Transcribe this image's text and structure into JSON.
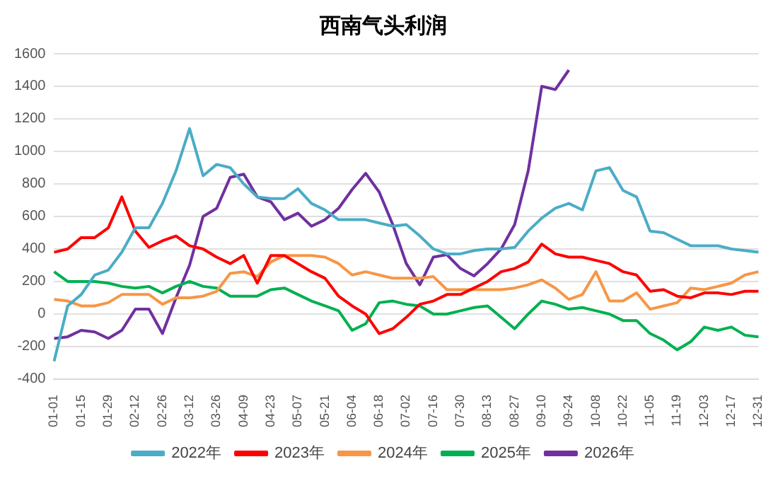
{
  "chart_data": {
    "type": "line",
    "title": "西南气头利润",
    "categories": [
      "01-01",
      null,
      "01-15",
      null,
      "01-29",
      null,
      "02-12",
      null,
      "02-26",
      null,
      "03-12",
      null,
      "03-26",
      null,
      "04-09",
      null,
      "04-23",
      null,
      "05-07",
      null,
      "05-21",
      null,
      "06-04",
      null,
      "06-18",
      null,
      "07-02",
      null,
      "07-16",
      null,
      "07-30",
      null,
      "08-13",
      null,
      "08-27",
      null,
      "09-10",
      null,
      "09-24",
      null,
      "10-08",
      null,
      "10-22",
      null,
      "11-05",
      null,
      "11-19",
      null,
      "12-03",
      null,
      "12-17",
      null,
      "12-31"
    ],
    "series": [
      {
        "name": "2022年",
        "color": "#4bacc6",
        "values": [
          -290,
          50,
          120,
          240,
          270,
          380,
          530,
          530,
          680,
          880,
          1140,
          850,
          920,
          900,
          800,
          720,
          710,
          710,
          770,
          680,
          640,
          580,
          580,
          580,
          560,
          540,
          550,
          480,
          400,
          370,
          370,
          390,
          400,
          400,
          410,
          510,
          590,
          650,
          680,
          640,
          880,
          900,
          760,
          720,
          510,
          500,
          460,
          420,
          420,
          420,
          400,
          390,
          380
        ]
      },
      {
        "name": "2023年",
        "color": "#ff0000",
        "values": [
          380,
          400,
          470,
          470,
          530,
          720,
          510,
          410,
          450,
          480,
          420,
          400,
          350,
          310,
          360,
          190,
          360,
          360,
          310,
          260,
          220,
          110,
          50,
          0,
          -120,
          -90,
          -20,
          60,
          80,
          120,
          120,
          160,
          200,
          260,
          280,
          320,
          430,
          370,
          350,
          350,
          330,
          310,
          260,
          240,
          140,
          150,
          110,
          100,
          130,
          130,
          120,
          140,
          140
        ]
      },
      {
        "name": "2024年",
        "color": "#f79646",
        "values": [
          90,
          80,
          50,
          50,
          70,
          120,
          120,
          120,
          60,
          100,
          100,
          110,
          140,
          250,
          260,
          230,
          320,
          360,
          360,
          360,
          350,
          310,
          240,
          260,
          240,
          220,
          220,
          220,
          230,
          150,
          150,
          150,
          150,
          150,
          160,
          180,
          210,
          160,
          90,
          120,
          260,
          80,
          80,
          130,
          30,
          50,
          70,
          160,
          150,
          170,
          190,
          240,
          260
        ]
      },
      {
        "name": "2025年",
        "color": "#00b050",
        "values": [
          260,
          200,
          200,
          200,
          190,
          170,
          160,
          170,
          130,
          170,
          200,
          170,
          160,
          110,
          110,
          110,
          150,
          160,
          120,
          80,
          50,
          20,
          -100,
          -60,
          70,
          80,
          60,
          50,
          0,
          0,
          20,
          40,
          50,
          -20,
          -90,
          0,
          80,
          60,
          30,
          40,
          20,
          0,
          -40,
          -40,
          -120,
          -160,
          -220,
          -170,
          -80,
          -100,
          -80,
          -130,
          -140
        ]
      },
      {
        "name": "2026年",
        "color": "#7030a0",
        "values": [
          -150,
          -140,
          -100,
          -110,
          -150,
          -100,
          30,
          30,
          -120,
          100,
          300,
          600,
          650,
          840,
          860,
          720,
          690,
          580,
          620,
          540,
          580,
          650,
          765,
          865,
          750,
          550,
          310,
          180,
          350,
          365,
          280,
          235,
          310,
          400,
          550,
          880,
          1400,
          1380,
          1500,
          null,
          null,
          null,
          null,
          null,
          null,
          null,
          null,
          null,
          null,
          null,
          null,
          null,
          null
        ]
      }
    ],
    "ylim": [
      -400,
      1600
    ],
    "yticks": [
      -400,
      -200,
      0,
      200,
      400,
      600,
      800,
      1000,
      1200,
      1400,
      1600
    ],
    "grid": "y",
    "legend": "bottom",
    "marker": "none",
    "line_style": "solid"
  }
}
